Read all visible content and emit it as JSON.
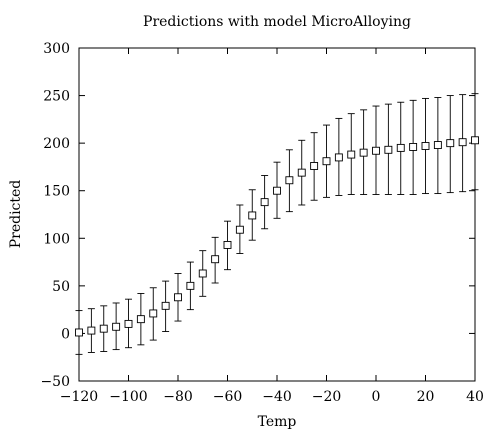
{
  "chart_data": {
    "type": "scatter",
    "title": "Predictions with model MicroAlloying",
    "xlabel": "Temp",
    "ylabel": "Predicted",
    "xlim": [
      -120,
      40
    ],
    "ylim": [
      -50,
      300
    ],
    "xticks": [
      -120,
      -100,
      -80,
      -60,
      -40,
      -20,
      0,
      20,
      40
    ],
    "yticks": [
      -50,
      0,
      50,
      100,
      150,
      200,
      250,
      300
    ],
    "xtick_labels": [
      "−120",
      "−100",
      "−80",
      "−60",
      "−40",
      "−20",
      "0",
      "20",
      "40"
    ],
    "ytick_labels": [
      "−50",
      "0",
      "50",
      "100",
      "150",
      "200",
      "250",
      "300"
    ],
    "grid": false,
    "marker": "open-square",
    "series": [
      {
        "points": [
          {
            "x": -120,
            "y": 1,
            "lo": -22,
            "hi": 24
          },
          {
            "x": -115,
            "y": 3,
            "lo": -20,
            "hi": 26
          },
          {
            "x": -110,
            "y": 5,
            "lo": -19,
            "hi": 29
          },
          {
            "x": -105,
            "y": 7,
            "lo": -17,
            "hi": 32
          },
          {
            "x": -100,
            "y": 10,
            "lo": -15,
            "hi": 36
          },
          {
            "x": -95,
            "y": 15,
            "lo": -12,
            "hi": 42
          },
          {
            "x": -90,
            "y": 21,
            "lo": -7,
            "hi": 48
          },
          {
            "x": -85,
            "y": 29,
            "lo": 2,
            "hi": 55
          },
          {
            "x": -80,
            "y": 38,
            "lo": 13,
            "hi": 63
          },
          {
            "x": -75,
            "y": 50,
            "lo": 25,
            "hi": 75
          },
          {
            "x": -70,
            "y": 63,
            "lo": 39,
            "hi": 87
          },
          {
            "x": -65,
            "y": 78,
            "lo": 53,
            "hi": 101
          },
          {
            "x": -60,
            "y": 93,
            "lo": 67,
            "hi": 118
          },
          {
            "x": -55,
            "y": 109,
            "lo": 84,
            "hi": 135
          },
          {
            "x": -50,
            "y": 124,
            "lo": 98,
            "hi": 151
          },
          {
            "x": -45,
            "y": 138,
            "lo": 110,
            "hi": 166
          },
          {
            "x": -40,
            "y": 150,
            "lo": 121,
            "hi": 180
          },
          {
            "x": -35,
            "y": 161,
            "lo": 128,
            "hi": 193
          },
          {
            "x": -30,
            "y": 169,
            "lo": 135,
            "hi": 203
          },
          {
            "x": -25,
            "y": 176,
            "lo": 140,
            "hi": 211
          },
          {
            "x": -20,
            "y": 181,
            "lo": 143,
            "hi": 219
          },
          {
            "x": -15,
            "y": 185,
            "lo": 145,
            "hi": 226
          },
          {
            "x": -10,
            "y": 188,
            "lo": 146,
            "hi": 231
          },
          {
            "x": -5,
            "y": 190,
            "lo": 146,
            "hi": 235
          },
          {
            "x": 0,
            "y": 192,
            "lo": 146,
            "hi": 239
          },
          {
            "x": 5,
            "y": 193,
            "lo": 146,
            "hi": 241
          },
          {
            "x": 10,
            "y": 195,
            "lo": 146,
            "hi": 243
          },
          {
            "x": 15,
            "y": 196,
            "lo": 146,
            "hi": 245
          },
          {
            "x": 20,
            "y": 197,
            "lo": 147,
            "hi": 247
          },
          {
            "x": 25,
            "y": 198,
            "lo": 147,
            "hi": 248
          },
          {
            "x": 30,
            "y": 200,
            "lo": 148,
            "hi": 250
          },
          {
            "x": 35,
            "y": 201,
            "lo": 149,
            "hi": 251
          },
          {
            "x": 40,
            "y": 203,
            "lo": 151,
            "hi": 252
          }
        ]
      }
    ]
  }
}
